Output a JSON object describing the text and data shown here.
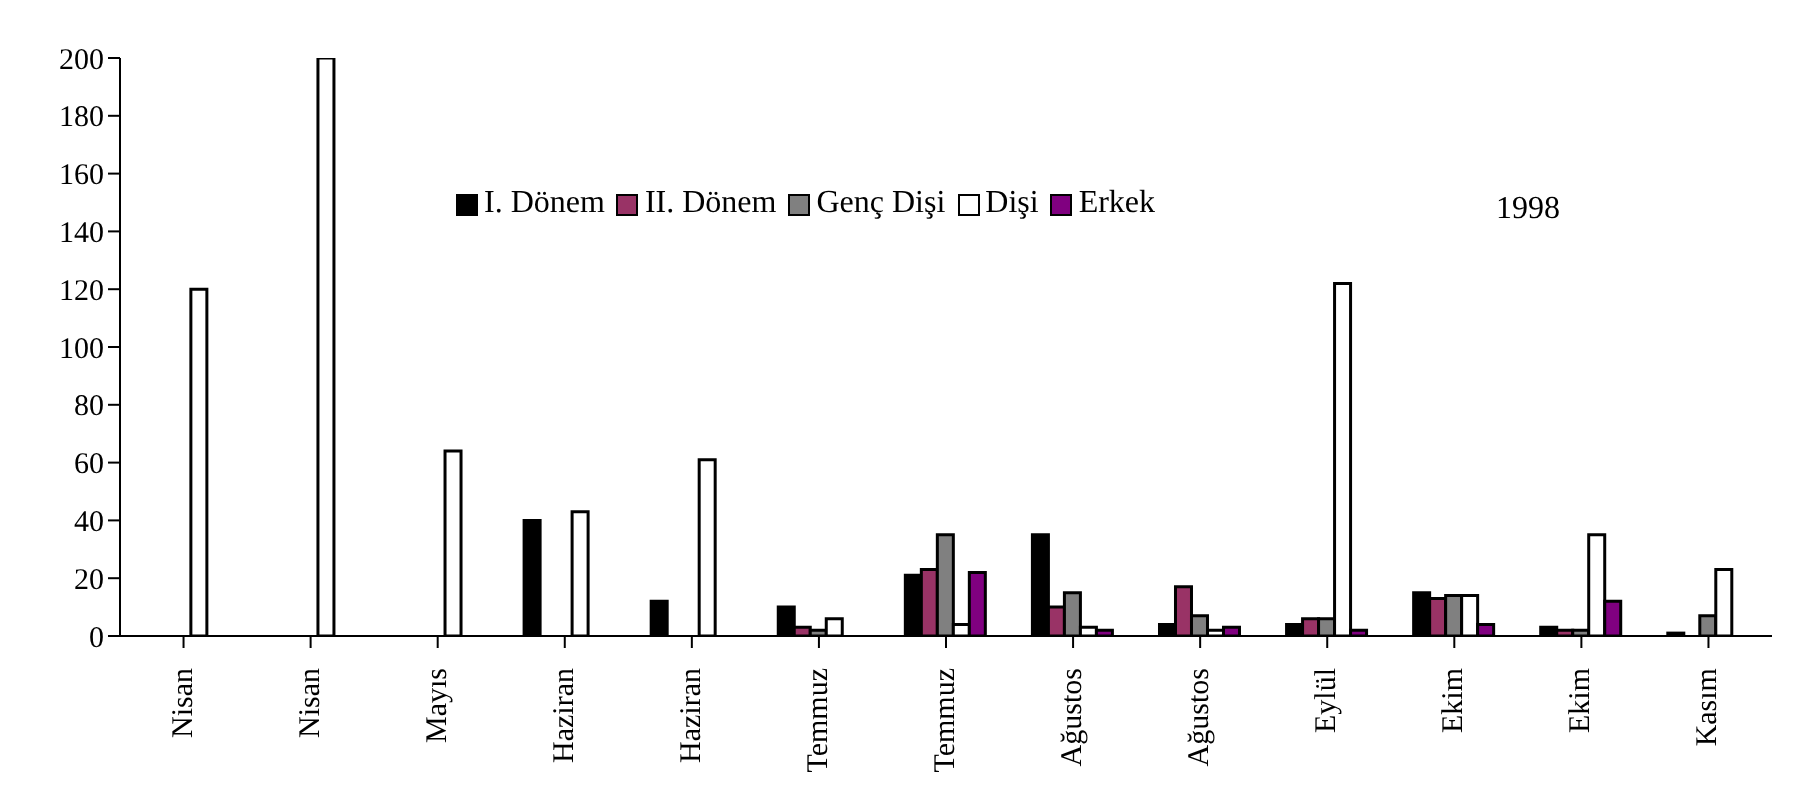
{
  "chart_data": {
    "type": "bar",
    "categories": [
      "Nisan",
      "Nisan",
      "Mayıs",
      "Haziran",
      "Haziran",
      "Temmuz",
      "Temmuz",
      "Ağustos",
      "Ağustos",
      "Eylül",
      "Ekim",
      "Ekim",
      "Kasım"
    ],
    "series": [
      {
        "name": "I. Dönem",
        "color": "#000000",
        "values": [
          null,
          null,
          null,
          40,
          12,
          10,
          21,
          35,
          4,
          4,
          15,
          3,
          1
        ]
      },
      {
        "name": "II. Dönem",
        "color": "#993366",
        "values": [
          null,
          null,
          null,
          null,
          null,
          3,
          23,
          10,
          17,
          6,
          13,
          2,
          null
        ]
      },
      {
        "name": "Genç Dişi",
        "color": "#808080",
        "values": [
          null,
          null,
          null,
          null,
          null,
          2,
          35,
          15,
          7,
          6,
          14,
          2,
          7
        ]
      },
      {
        "name": "Dişi",
        "color": "#ffffff",
        "values": [
          120,
          200,
          64,
          43,
          61,
          6,
          4,
          3,
          2,
          122,
          14,
          35,
          23
        ]
      },
      {
        "name": "Erkek",
        "color": "#800080",
        "values": [
          null,
          null,
          null,
          null,
          null,
          null,
          22,
          2,
          3,
          2,
          4,
          12,
          null
        ]
      }
    ],
    "ylim": [
      0,
      200
    ],
    "yticks": [
      0,
      20,
      40,
      60,
      80,
      100,
      120,
      140,
      160,
      180,
      200
    ],
    "grid": false,
    "legend": "top",
    "annotations": [
      "1998"
    ]
  }
}
